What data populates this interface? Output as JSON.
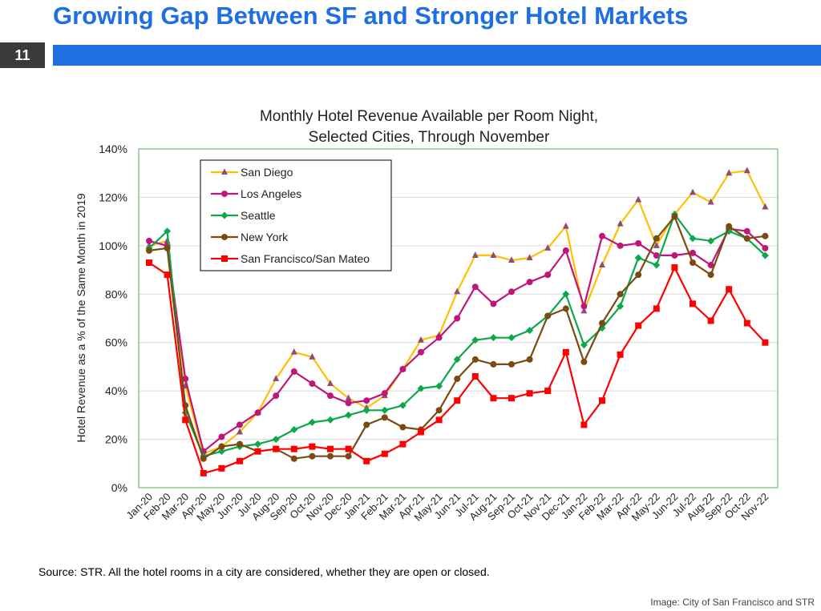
{
  "slide": {
    "title": "Growing Gap Between SF and Stronger Hotel Markets",
    "number": "11"
  },
  "source_note": "Source: STR. All the hotel rooms in a city are considered, whether they are open or closed.",
  "credit": "Image: City of San Francisco and STR",
  "chart_data": {
    "type": "line",
    "title_lines": [
      "Monthly Hotel Revenue Available per Room Night,",
      "Selected Cities, Through November"
    ],
    "ylabel": "Hotel Revenue as a % of the  Same Month in 2019",
    "xlabel": "",
    "ylim": [
      0,
      140
    ],
    "yticks": [
      0,
      20,
      40,
      60,
      80,
      100,
      120,
      140
    ],
    "ytick_labels": [
      "0%",
      "20%",
      "40%",
      "60%",
      "80%",
      "100%",
      "120%",
      "140%"
    ],
    "grid": true,
    "legend_position": "top-left",
    "categories": [
      "Jan-20",
      "Feb-20",
      "Mar-20",
      "Apr-20",
      "May-20",
      "Jun-20",
      "Jul-20",
      "Aug-20",
      "Sep-20",
      "Oct-20",
      "Nov-20",
      "Dec-20",
      "Jan-21",
      "Feb-21",
      "Mar-21",
      "Apr-21",
      "May-21",
      "Jun-21",
      "Jul-21",
      "Aug-21",
      "Sep-21",
      "Oct-21",
      "Nov-21",
      "Dec-21",
      "Jan-22",
      "Feb-22",
      "Mar-22",
      "Apr-22",
      "May-22",
      "Jun-22",
      "Jul-22",
      "Aug-22",
      "Sep-22",
      "Oct-22",
      "Nov-22"
    ],
    "series": [
      {
        "name": "San Diego",
        "color": "#ffc000",
        "marker": "triangle",
        "marker_color": "#8e4b7a",
        "values": [
          100,
          102,
          42,
          14,
          17,
          23,
          31,
          45,
          56,
          54,
          43,
          37,
          33,
          38,
          49,
          61,
          63,
          81,
          96,
          96,
          94,
          95,
          99,
          108,
          73,
          92,
          109,
          119,
          100,
          113,
          122,
          118,
          130,
          131,
          116
        ]
      },
      {
        "name": "Los Angeles",
        "color": "#c0167a",
        "marker": "circle",
        "marker_color": "#c0167a",
        "values": [
          102,
          100,
          45,
          15,
          21,
          26,
          31,
          38,
          48,
          43,
          38,
          35,
          36,
          39,
          49,
          56,
          62,
          70,
          83,
          76,
          81,
          85,
          88,
          98,
          75,
          104,
          100,
          101,
          96,
          96,
          97,
          92,
          107,
          106,
          99
        ]
      },
      {
        "name": "Seattle",
        "color": "#0ca84a",
        "marker": "diamond",
        "marker_color": "#0ca84a",
        "values": [
          99,
          106,
          31,
          13,
          15,
          17,
          18,
          20,
          24,
          27,
          28,
          30,
          32,
          32,
          34,
          41,
          42,
          53,
          61,
          62,
          62,
          65,
          71,
          80,
          59,
          66,
          75,
          95,
          92,
          113,
          103,
          102,
          106,
          103,
          96
        ]
      },
      {
        "name": "New York",
        "color": "#7b4a12",
        "marker": "circle",
        "marker_color": "#7b4a12",
        "values": [
          98,
          99,
          34,
          12,
          17,
          18,
          15,
          16,
          12,
          13,
          13,
          13,
          26,
          29,
          25,
          24,
          32,
          45,
          53,
          51,
          51,
          53,
          71,
          74,
          52,
          68,
          80,
          88,
          103,
          112,
          93,
          88,
          108,
          103,
          104
        ]
      },
      {
        "name": "San Francisco/San Mateo",
        "color": "#ff0000",
        "marker": "square",
        "marker_color": "#ff0000",
        "values": [
          93,
          88,
          28,
          6,
          8,
          11,
          15,
          16,
          16,
          17,
          16,
          16,
          11,
          14,
          18,
          23,
          28,
          36,
          46,
          37,
          37,
          39,
          40,
          56,
          26,
          36,
          55,
          67,
          74,
          91,
          76,
          69,
          82,
          68,
          60
        ]
      }
    ]
  }
}
